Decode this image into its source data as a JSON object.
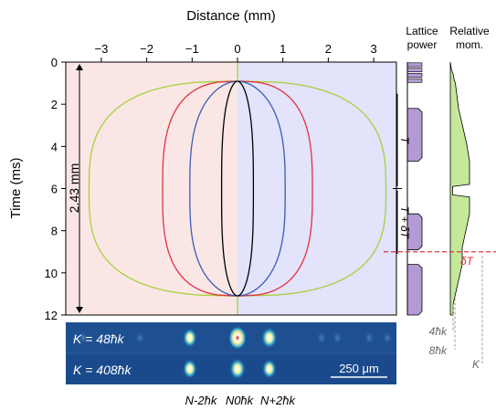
{
  "chart_data": [
    {
      "type": "line",
      "title": "",
      "xlabel": "Distance (mm)",
      "ylabel": "Time (ms)",
      "xlim": [
        -3.8,
        3.5
      ],
      "ylim": [
        12,
        0
      ],
      "x_ticks": [
        -3,
        -2,
        -1,
        0,
        1,
        2,
        3
      ],
      "x_tick_labels": [
        "−3",
        "−2",
        "−1",
        "0",
        "1",
        "2",
        "3"
      ],
      "y_ticks": [
        0,
        2,
        4,
        6,
        8,
        10,
        12
      ],
      "grid": false,
      "colors": {
        "left_background": "#fbe6e6",
        "right_background": "#e3e3fb",
        "outer": "#a4d23a",
        "red": "#e0323c",
        "blue": "#3a5bb8",
        "inner": "#000000"
      },
      "series": [
        {
          "color_key": "outer",
          "max_half_width": 3.27
        },
        {
          "color_key": "red",
          "max_half_width": 1.65
        },
        {
          "color_key": "blue",
          "max_half_width": 1.05
        },
        {
          "color_key": "inner",
          "max_half_width": 0.35
        }
      ],
      "time_start": 0.9,
      "time_end": 11.1,
      "time_max_width": 6.1,
      "annotation": {
        "label": "2.43 mm",
        "from_time": 0,
        "to_time": 12
      }
    },
    {
      "type": "area",
      "title": "Lattice power",
      "fill": "#b49ad4",
      "pulse_groups_ms": [
        [
          0,
          1.0
        ],
        [
          2.2,
          4.7
        ],
        [
          7.2,
          8.9
        ],
        [
          9.6,
          12
        ]
      ],
      "period_labels": [
        "T",
        "T + δT"
      ]
    },
    {
      "type": "area",
      "title": "Relative mom.",
      "fill": "#c5e89a",
      "delta_label": "δT",
      "delta_time_ms": 9.0,
      "delta_color": "#e0323c",
      "step_labels": [
        "4ħk",
        "8ħk",
        "K"
      ]
    }
  ],
  "images": {
    "rows": [
      {
        "label": "K = 48ħk"
      },
      {
        "label": "K = 408ħk"
      }
    ],
    "scale_bar": "250 μm",
    "peak_labels": [
      "N-2ħk",
      "N0ħk",
      "N+2ħk"
    ]
  }
}
